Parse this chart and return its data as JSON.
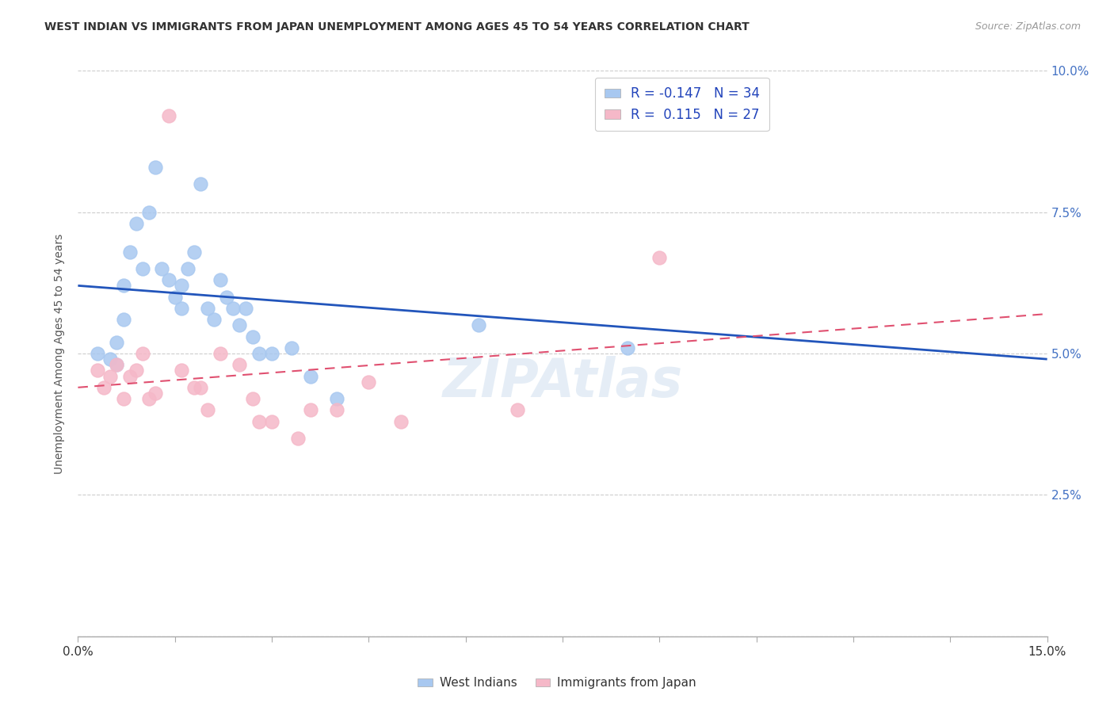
{
  "title": "WEST INDIAN VS IMMIGRANTS FROM JAPAN UNEMPLOYMENT AMONG AGES 45 TO 54 YEARS CORRELATION CHART",
  "source": "Source: ZipAtlas.com",
  "ylabel": "Unemployment Among Ages 45 to 54 years",
  "xlim": [
    0,
    0.15
  ],
  "ylim": [
    0,
    0.1
  ],
  "xticks": [
    0.0,
    0.015,
    0.03,
    0.045,
    0.06,
    0.075,
    0.09,
    0.105,
    0.12,
    0.135,
    0.15
  ],
  "yticks": [
    0.0,
    0.025,
    0.05,
    0.075,
    0.1
  ],
  "blue_R": -0.147,
  "blue_N": 34,
  "pink_R": 0.115,
  "pink_N": 27,
  "blue_label": "West Indians",
  "pink_label": "Immigrants from Japan",
  "blue_color": "#A8C8F0",
  "pink_color": "#F5B8C8",
  "blue_line_color": "#2255BB",
  "pink_line_color": "#E05070",
  "west_indians_x": [
    0.003,
    0.005,
    0.006,
    0.006,
    0.007,
    0.007,
    0.008,
    0.009,
    0.01,
    0.011,
    0.012,
    0.013,
    0.014,
    0.015,
    0.016,
    0.016,
    0.017,
    0.018,
    0.019,
    0.02,
    0.021,
    0.022,
    0.023,
    0.024,
    0.025,
    0.026,
    0.027,
    0.028,
    0.03,
    0.033,
    0.036,
    0.04,
    0.062,
    0.085
  ],
  "west_indians_y": [
    0.05,
    0.049,
    0.048,
    0.052,
    0.062,
    0.056,
    0.068,
    0.073,
    0.065,
    0.075,
    0.083,
    0.065,
    0.063,
    0.06,
    0.062,
    0.058,
    0.065,
    0.068,
    0.08,
    0.058,
    0.056,
    0.063,
    0.06,
    0.058,
    0.055,
    0.058,
    0.053,
    0.05,
    0.05,
    0.051,
    0.046,
    0.042,
    0.055,
    0.051
  ],
  "japan_x": [
    0.003,
    0.004,
    0.005,
    0.006,
    0.007,
    0.008,
    0.009,
    0.01,
    0.011,
    0.012,
    0.014,
    0.016,
    0.018,
    0.019,
    0.02,
    0.022,
    0.025,
    0.027,
    0.028,
    0.03,
    0.034,
    0.036,
    0.04,
    0.045,
    0.05,
    0.068,
    0.09
  ],
  "japan_y": [
    0.047,
    0.044,
    0.046,
    0.048,
    0.042,
    0.046,
    0.047,
    0.05,
    0.042,
    0.043,
    0.092,
    0.047,
    0.044,
    0.044,
    0.04,
    0.05,
    0.048,
    0.042,
    0.038,
    0.038,
    0.035,
    0.04,
    0.04,
    0.045,
    0.038,
    0.04,
    0.067
  ],
  "watermark": "ZIPAtlas",
  "background_color": "#ffffff",
  "grid_color": "#cccccc",
  "blue_trend_x0": 0.0,
  "blue_trend_y0": 0.062,
  "blue_trend_x1": 0.15,
  "blue_trend_y1": 0.049,
  "pink_trend_x0": 0.0,
  "pink_trend_y0": 0.044,
  "pink_trend_x1": 0.15,
  "pink_trend_y1": 0.057
}
